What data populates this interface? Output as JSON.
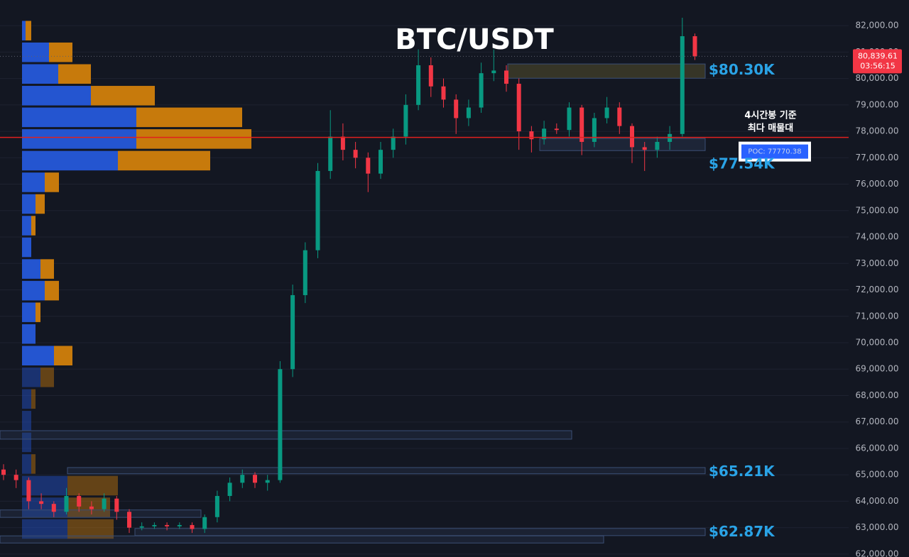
{
  "chart_data": {
    "type": "candlestick",
    "title": "BTC/USDT",
    "categories": [
      null,
      null,
      null,
      null,
      null,
      null,
      null,
      null,
      null,
      null,
      null,
      null,
      null,
      null,
      null,
      null,
      null,
      null,
      null,
      null,
      null,
      null,
      null,
      null,
      null,
      null,
      null,
      null,
      null,
      null,
      null,
      null,
      null,
      null,
      null,
      null,
      null,
      null,
      null,
      null,
      null,
      null,
      null,
      null,
      null,
      null,
      null,
      null,
      null,
      null,
      null,
      null,
      null,
      null,
      null,
      null
    ],
    "open": [
      65200,
      65000,
      64800,
      64000,
      63900,
      63600,
      64200,
      63800,
      63700,
      64100,
      63600,
      63000,
      63050,
      63100,
      63050,
      63100,
      62950,
      63400,
      64200,
      64700,
      65000,
      64700,
      64800,
      69000,
      71800,
      73500,
      76500,
      77800,
      77300,
      77000,
      76400,
      77300,
      77800,
      79000,
      80500,
      79700,
      79200,
      78500,
      78900,
      80200,
      80300,
      79800,
      78000,
      77700,
      78100,
      78050,
      78900,
      77600,
      78500,
      78900,
      78200,
      77400,
      77300,
      77600,
      77900,
      81600
    ],
    "high": [
      65400,
      65200,
      64900,
      64300,
      64000,
      64500,
      64300,
      64000,
      64300,
      64200,
      63700,
      63200,
      63200,
      63200,
      63200,
      63200,
      63500,
      64400,
      64900,
      65200,
      65100,
      65000,
      69300,
      72200,
      73800,
      76800,
      78800,
      78300,
      77600,
      77200,
      77600,
      78100,
      79400,
      81100,
      80800,
      80000,
      79400,
      79200,
      80600,
      81100,
      80500,
      80000,
      78200,
      78400,
      78300,
      79100,
      79000,
      78700,
      79300,
      79100,
      78300,
      77600,
      77800,
      78200,
      82300,
      81700
    ],
    "low": [
      64800,
      64500,
      63700,
      63700,
      63400,
      63500,
      63600,
      63500,
      63600,
      63300,
      62800,
      62900,
      62950,
      62900,
      62950,
      62800,
      62800,
      63200,
      64000,
      64500,
      64500,
      64400,
      64700,
      68700,
      71500,
      73200,
      76200,
      76900,
      76600,
      75700,
      76200,
      77000,
      77500,
      78800,
      79300,
      78900,
      77900,
      78200,
      78700,
      79900,
      79500,
      77300,
      77200,
      77500,
      77900,
      77800,
      77100,
      77400,
      78300,
      77900,
      76800,
      76500,
      77000,
      77300,
      77800,
      80700
    ],
    "close": [
      65000,
      64800,
      64000,
      63900,
      63600,
      64200,
      63800,
      63700,
      64100,
      63600,
      63000,
      63050,
      63100,
      63050,
      63100,
      62950,
      63400,
      64200,
      64700,
      65000,
      64700,
      64800,
      69000,
      71800,
      73500,
      76500,
      77800,
      77300,
      77000,
      76400,
      77300,
      77800,
      79000,
      80500,
      79700,
      79200,
      78500,
      78900,
      80200,
      80300,
      79800,
      78000,
      77700,
      78100,
      78050,
      78900,
      77600,
      78500,
      78900,
      78200,
      77400,
      77300,
      77600,
      77900,
      81600,
      80840
    ],
    "up_color": "#089981",
    "down_color": "#f23645",
    "ylim": [
      61890,
      82970
    ],
    "yticks": [
      {
        "value": 62000,
        "label": "62,000.00"
      },
      {
        "value": 63000,
        "label": "63,000.00"
      },
      {
        "value": 64000,
        "label": "64,000.00"
      },
      {
        "value": 65000,
        "label": "65,000.00"
      },
      {
        "value": 66000,
        "label": "66,000.00"
      },
      {
        "value": 67000,
        "label": "67,000.00"
      },
      {
        "value": 68000,
        "label": "68,000.00"
      },
      {
        "value": 69000,
        "label": "69,000.00"
      },
      {
        "value": 70000,
        "label": "70,000.00"
      },
      {
        "value": 71000,
        "label": "71,000.00"
      },
      {
        "value": 72000,
        "label": "72,000.00"
      },
      {
        "value": 73000,
        "label": "73,000.00"
      },
      {
        "value": 74000,
        "label": "74,000.00"
      },
      {
        "value": 75000,
        "label": "75,000.00"
      },
      {
        "value": 76000,
        "label": "76,000.00"
      },
      {
        "value": 77000,
        "label": "77,000.00"
      },
      {
        "value": 78000,
        "label": "78,000.00"
      },
      {
        "value": 79000,
        "label": "79,000.00"
      },
      {
        "value": 80000,
        "label": "80,000.00"
      },
      {
        "value": 81000,
        "label": "81,000.00"
      },
      {
        "value": 82000,
        "label": "82,000.00"
      }
    ],
    "grid": true,
    "volume_profile": {
      "bins": [
        62540,
        63360,
        64180,
        65000,
        65820,
        66640,
        67460,
        68280,
        69100,
        69920,
        70740,
        71560,
        72380,
        73200,
        74020,
        74840,
        75660,
        76480,
        77300,
        78120,
        78940,
        79760,
        80580,
        81400,
        82220
      ],
      "buy": [
        64,
        64,
        64,
        13,
        13,
        13,
        13,
        26,
        45,
        19,
        19,
        32,
        26,
        13,
        13,
        19,
        32,
        135,
        161,
        161,
        97,
        51,
        38,
        5
      ],
      "sell": [
        65,
        60,
        71,
        6,
        0,
        0,
        6,
        19,
        26,
        0,
        7,
        20,
        19,
        0,
        6,
        13,
        20,
        130,
        162,
        149,
        90,
        46,
        33,
        8
      ],
      "xlim": [
        0,
        400
      ],
      "buy_color": "#2455d0",
      "sell_color": "#c77a0c"
    },
    "zones": [
      {
        "low": 80010,
        "high": 80550
      },
      {
        "low": 77270,
        "high": 77730
      },
      {
        "low": 66350,
        "high": 66670
      },
      {
        "low": 65040,
        "high": 65275
      },
      {
        "low": 63390,
        "high": 63670
      },
      {
        "low": 62700,
        "high": 62970
      },
      {
        "low": 62420,
        "high": 62690
      }
    ],
    "price_labels": [
      {
        "value": 80300,
        "label": "$80.30K"
      },
      {
        "value": 77540,
        "label": "$77.54K"
      },
      {
        "value": 65210,
        "label": "$65.21K"
      },
      {
        "value": 62870,
        "label": "$62.87K"
      }
    ],
    "poc": {
      "value": 77770.38,
      "label": "POC: 77770.38"
    },
    "poc_note": [
      "4시간봉 기준",
      "최다 매물대"
    ],
    "last_price": {
      "value": 80839.61,
      "label": "80,839.61"
    },
    "countdown": "03:56:15"
  }
}
